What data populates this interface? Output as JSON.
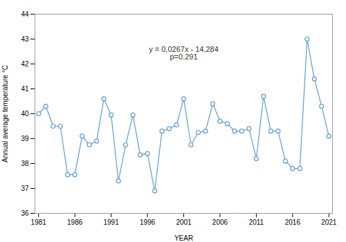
{
  "chart_data": {
    "type": "line",
    "x": [
      1981,
      1982,
      1983,
      1984,
      1985,
      1986,
      1987,
      1988,
      1989,
      1990,
      1991,
      1992,
      1993,
      1994,
      1995,
      1996,
      1997,
      1998,
      1999,
      2000,
      2001,
      2002,
      2003,
      2004,
      2005,
      2006,
      2007,
      2008,
      2009,
      2010,
      2011,
      2012,
      2013,
      2014,
      2015,
      2016,
      2017,
      2018,
      2019,
      2020,
      2021
    ],
    "values": [
      40.0,
      40.3,
      39.5,
      39.5,
      37.55,
      37.55,
      39.1,
      38.75,
      38.9,
      40.6,
      39.95,
      37.3,
      38.75,
      39.95,
      38.35,
      38.4,
      36.9,
      39.3,
      39.4,
      39.55,
      40.6,
      38.75,
      39.25,
      39.3,
      40.4,
      39.7,
      39.6,
      39.3,
      39.3,
      39.4,
      38.2,
      40.7,
      39.3,
      39.3,
      38.1,
      37.8,
      37.8,
      43.0,
      41.4,
      40.3,
      39.1
    ],
    "color": "#5B9BD5",
    "marker": "circle",
    "xlabel": "YEAR",
    "ylabel": "Annual average temperature °C",
    "xlim": [
      1980.5,
      2021.5
    ],
    "xticks": [
      1981,
      1986,
      1991,
      1996,
      2001,
      2006,
      2011,
      2016,
      2021
    ],
    "ylim": [
      36,
      44
    ],
    "yticks": [
      36,
      37,
      38,
      39,
      40,
      41,
      42,
      43,
      44
    ],
    "grid": false,
    "annotations": [
      {
        "text": "y = 0,0267x - 14,284\np=0.291",
        "x": 2001,
        "y": 42.7,
        "color": "#333333"
      }
    ]
  }
}
